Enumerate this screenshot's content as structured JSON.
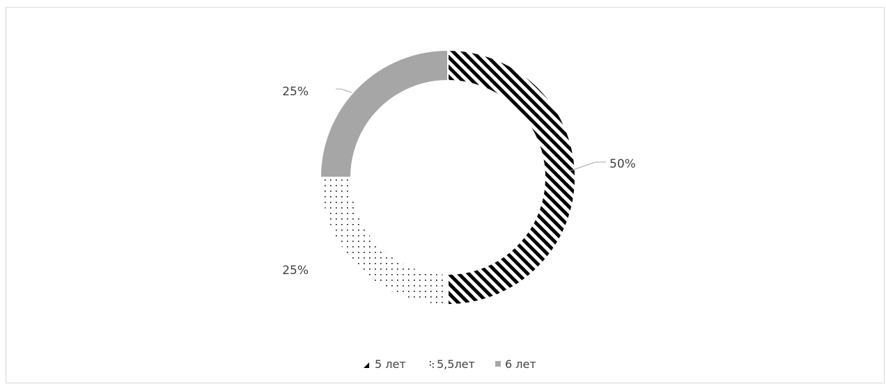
{
  "chart_data": {
    "type": "pie",
    "variant": "doughnut",
    "categories": [
      "5 лет",
      "5,5лет",
      "6 лет"
    ],
    "values": [
      50,
      25,
      25
    ],
    "data_labels": [
      "50%",
      "25%",
      "25%"
    ],
    "fills": [
      "diagonal-stripes",
      "dots",
      "solid"
    ],
    "colors": {
      "stripes": "#000000",
      "dots": "#000000",
      "solid": "#a6a6a6",
      "leader": "#a6a6a6",
      "text": "#404040"
    },
    "legend_position": "bottom",
    "title": ""
  }
}
